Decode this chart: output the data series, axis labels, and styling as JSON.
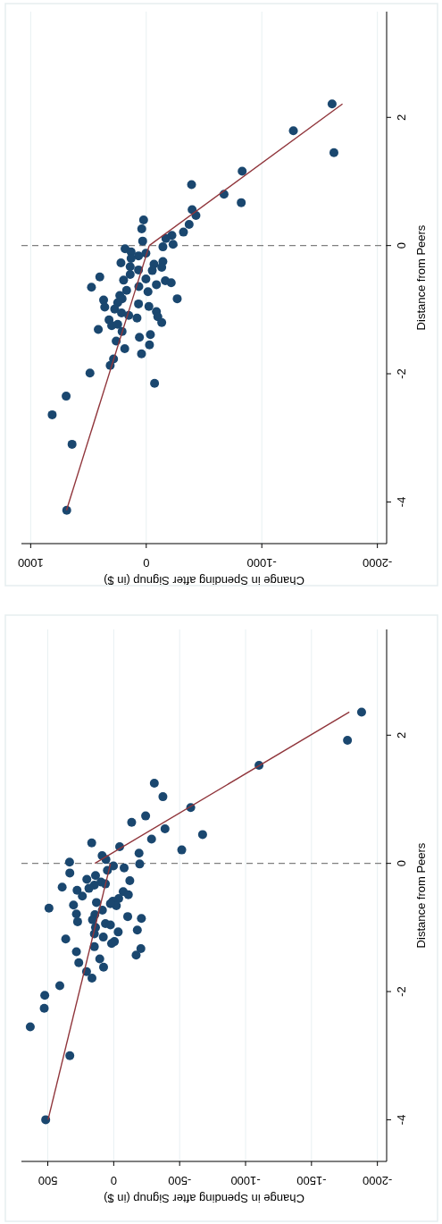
{
  "chart_data": [
    {
      "type": "scatter",
      "xlabel": "Change in Spending after Signup (in $)",
      "ylabel": "Distance from Peers",
      "xlim": [
        1080,
        -2080
      ],
      "ylim": [
        -4.65,
        3.65
      ],
      "xticks": [
        1000,
        0,
        -1000,
        -2000
      ],
      "yticks": [
        -4,
        -2,
        0,
        2
      ],
      "grid": "x",
      "marker": "circle",
      "ref_lines": [
        {
          "axis": "y",
          "value": 0,
          "color": "#808080",
          "line_style": "dashed"
        }
      ],
      "series": [
        {
          "color": "#1a476f",
          "values": [
            2.21,
            1.79,
            1.45,
            1.16,
            0.95,
            0.8,
            0.67,
            0.56,
            0.47,
            0.33,
            0.21,
            0.16,
            0.11,
            0.02,
            -0.02,
            0.4,
            0.26,
            0.07,
            -0.05,
            -0.1,
            -0.12,
            -0.16,
            -0.2,
            -0.27,
            -0.25,
            -0.29,
            -0.33,
            -0.34,
            -0.38,
            -0.39,
            -0.49,
            -0.45,
            -0.54,
            -0.52,
            -0.55,
            -0.58,
            -0.64,
            -0.61,
            -0.65,
            -0.7,
            -0.72,
            -0.78,
            -0.83,
            -0.83,
            -0.85,
            -0.89,
            -0.96,
            -0.99,
            -0.91,
            -0.95,
            -1.03,
            -1.05,
            -1.09,
            -1.11,
            -1.13,
            -1.16,
            -1.2,
            -1.25,
            -1.23,
            -1.31,
            -1.34,
            -1.43,
            -1.39,
            -1.49,
            -1.55,
            -1.61,
            -1.69,
            -1.77,
            -1.87,
            -1.99,
            -2.15,
            -2.35,
            -2.64,
            -3.1,
            -4.13
          ],
          "x": [
            -1608,
            -1273,
            -1624,
            -830,
            -392,
            -673,
            -822,
            -397,
            -430,
            -371,
            -322,
            -222,
            -170,
            -232,
            -144,
            23,
            39,
            31,
            183,
            131,
            3,
            67,
            131,
            219,
            -144,
            -67,
            139,
            -134,
            67,
            -52,
            402,
            139,
            196,
            3,
            -165,
            -216,
            64,
            -88,
            474,
            170,
            -15,
            229,
            209,
            -268,
            369,
            247,
            359,
            273,
            67,
            -23,
            -88,
            214,
            152,
            -100,
            80,
            322,
            -134,
            299,
            247,
            415,
            209,
            59,
            -36,
            260,
            -28,
            186,
            41,
            283,
            312,
            487,
            -72,
            693,
            814,
            642,
            688
          ]
        },
        {
          "type": "line",
          "marker": "none",
          "color": "#90353b",
          "x": [
            690,
            -26
          ],
          "values": [
            -4.13,
            0
          ]
        },
        {
          "type": "line",
          "marker": "none",
          "color": "#90353b",
          "x": [
            -26,
            -1698
          ],
          "values": [
            0,
            2.21
          ]
        }
      ]
    },
    {
      "type": "scatter",
      "xlabel": "Change in Spending after Signup (in $)",
      "ylabel": "Distance from Peers",
      "xlim": [
        700,
        -2070
      ],
      "ylim": [
        -4.65,
        3.65
      ],
      "xticks": [
        500,
        0,
        -500,
        -1000,
        -1500,
        -2000
      ],
      "yticks": [
        -4,
        -2,
        0,
        2
      ],
      "grid": "x",
      "marker": "circle",
      "ref_lines": [
        {
          "axis": "y",
          "value": 0,
          "color": "#808080",
          "line_style": "dashed"
        }
      ],
      "series": [
        {
          "color": "#1a476f",
          "values": [
            2.36,
            1.92,
            1.53,
            1.25,
            1.04,
            0.87,
            0.74,
            0.64,
            0.54,
            0.45,
            0.38,
            0.32,
            0.26,
            0.21,
            0.16,
            0.12,
            0.06,
            0.02,
            -0.01,
            -0.04,
            -0.15,
            -0.07,
            -0.11,
            -0.19,
            -0.25,
            -0.27,
            -0.29,
            -0.32,
            -0.34,
            -0.37,
            -0.39,
            -0.42,
            -0.44,
            -0.49,
            -0.51,
            -0.55,
            -0.59,
            -0.61,
            -0.65,
            -0.7,
            -0.66,
            -0.73,
            -0.63,
            -0.79,
            -0.83,
            -0.86,
            -0.8,
            -0.91,
            -0.88,
            -0.94,
            -0.96,
            -1.0,
            -1.04,
            -1.07,
            -1.1,
            -1.15,
            -1.18,
            -1.22,
            -1.25,
            -1.3,
            -1.33,
            -1.38,
            -1.43,
            -1.49,
            -1.55,
            -1.62,
            -1.69,
            -1.79,
            -1.91,
            -2.06,
            -2.26,
            -2.55,
            -3.0,
            -4.0
          ],
          "x": [
            -1880,
            -1773,
            -1102,
            -308,
            -373,
            -584,
            -242,
            -136,
            -389,
            -674,
            -287,
            167,
            -45,
            -516,
            -192,
            88,
            59,
            335,
            -197,
            2,
            333,
            -79,
            48,
            138,
            204,
            -122,
            97,
            63,
            147,
            391,
            188,
            278,
            -72,
            -111,
            238,
            -38,
            7,
            131,
            305,
            491,
            -20,
            86,
            25,
            283,
            -106,
            -210,
            143,
            274,
            161,
            63,
            25,
            138,
            -179,
            -34,
            147,
            79,
            364,
            -5,
            16,
            147,
            -206,
            283,
            -170,
            106,
            265,
            77,
            206,
            165,
            409,
            523,
            527,
            633,
            333,
            516
          ]
        },
        {
          "type": "line",
          "marker": "none",
          "color": "#90353b",
          "x": [
            498,
            25
          ],
          "values": [
            -4.0,
            -0.01
          ]
        },
        {
          "type": "line",
          "marker": "none",
          "color": "#90353b",
          "x": [
            143,
            -1787
          ],
          "values": [
            0,
            2.36
          ]
        }
      ]
    }
  ]
}
